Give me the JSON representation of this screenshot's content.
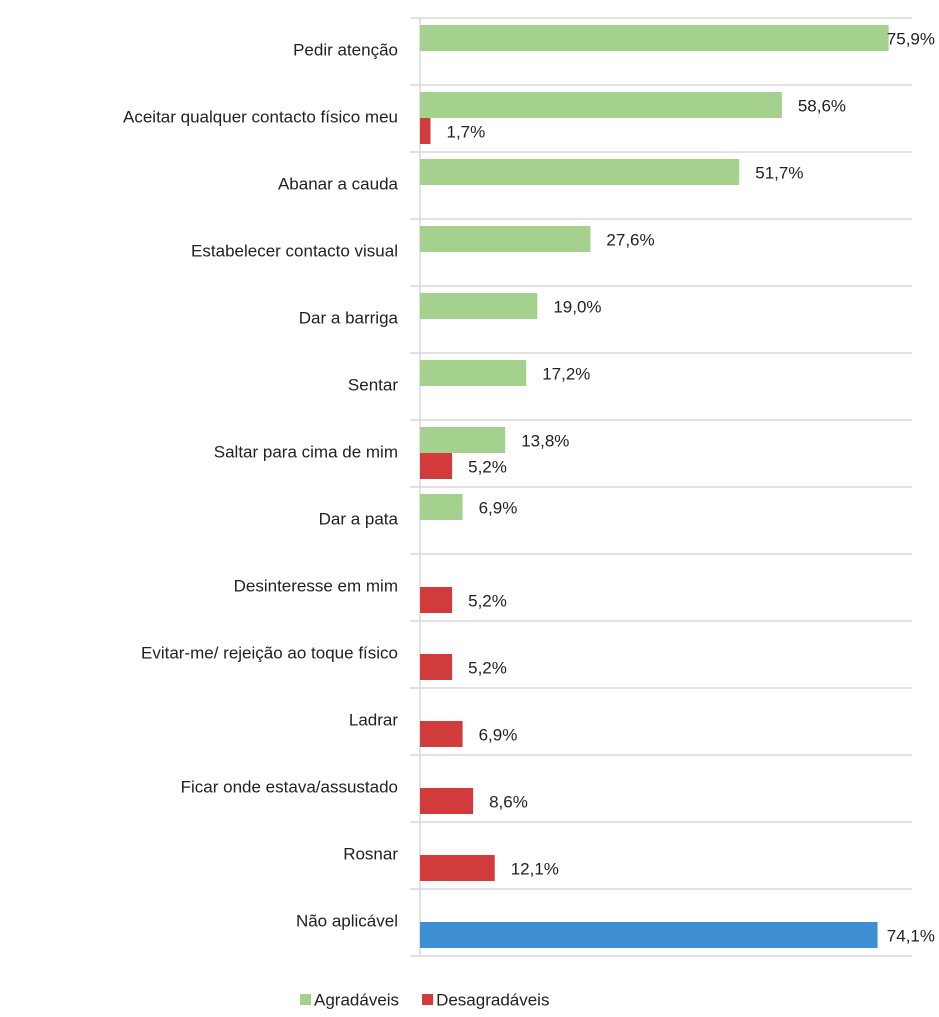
{
  "chart_data": {
    "type": "bar",
    "orientation": "horizontal",
    "categories": [
      "Pedir atenção",
      "Aceitar qualquer contacto físico meu",
      "Abanar a cauda",
      "Estabelecer contacto visual",
      "Dar a barriga",
      "Sentar",
      "Saltar para cima de mim",
      "Dar a pata",
      "Desinteresse em mim",
      "Evitar-me/ rejeição ao toque físico",
      "Ladrar",
      "Ficar onde estava/assustado",
      "Rosnar",
      "Não aplicável"
    ],
    "series": [
      {
        "name": "Agradáveis",
        "color": "#a5d18e",
        "values": [
          75.9,
          58.6,
          51.7,
          27.6,
          19.0,
          17.2,
          13.8,
          6.9,
          null,
          null,
          null,
          null,
          null,
          null
        ],
        "value_labels": [
          "75,9%",
          "58,6%",
          "51,7%",
          "27,6%",
          "19,0%",
          "17,2%",
          "13,8%",
          "6,9%",
          null,
          null,
          null,
          null,
          null,
          null
        ]
      },
      {
        "name": "Desagradáveis",
        "color": "#d13b3b",
        "values": [
          null,
          1.7,
          null,
          null,
          null,
          null,
          5.2,
          null,
          5.2,
          5.2,
          6.9,
          8.6,
          12.1,
          74.1
        ],
        "value_labels": [
          null,
          "1,7%",
          null,
          null,
          null,
          null,
          "5,2%",
          null,
          "5,2%",
          "5,2%",
          "6,9%",
          "8,6%",
          "12,1%",
          "74,1%"
        ],
        "colors": [
          null,
          null,
          null,
          null,
          null,
          null,
          null,
          null,
          null,
          null,
          null,
          null,
          null,
          "#3d8fd1"
        ]
      }
    ],
    "xlim": [
      0,
      80
    ]
  }
}
